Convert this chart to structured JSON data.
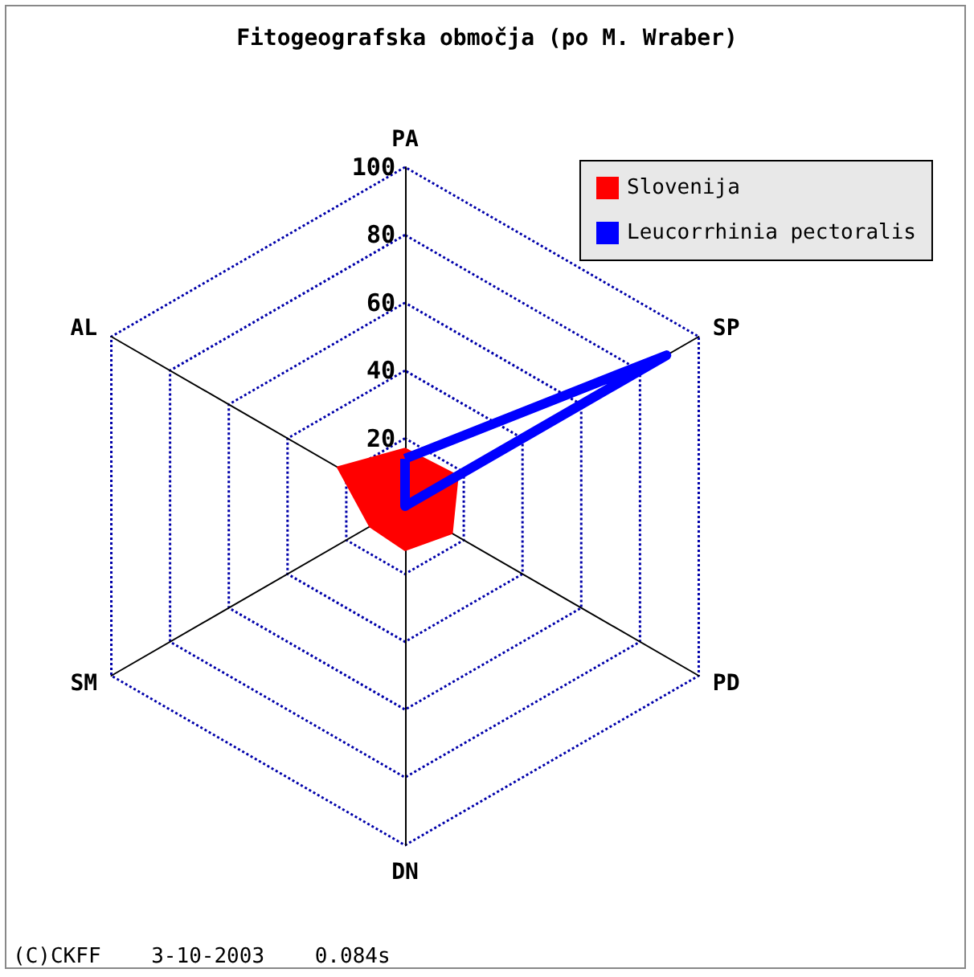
{
  "chart_data": {
    "type": "radar",
    "title": "Fitogeografska območja (po M. Wraber)",
    "categories": [
      "PA",
      "SP",
      "PD",
      "DN",
      "SM",
      "AL"
    ],
    "ylim": [
      0,
      100
    ],
    "yticks": [
      20,
      40,
      60,
      80,
      100
    ],
    "grid": true,
    "legend": "top right",
    "annotations": [
      "(C)CKFF    3-10-2003    0.084s"
    ],
    "series": [
      {
        "name": "Slovenija",
        "color": "#ff0000",
        "type": "area",
        "values": [
          17,
          18,
          16,
          13,
          12,
          23
        ]
      },
      {
        "name": "Leucorrhinia pectoralis",
        "color": "#0000ff",
        "values": [
          14,
          89,
          0,
          0,
          0,
          0
        ]
      }
    ]
  }
}
